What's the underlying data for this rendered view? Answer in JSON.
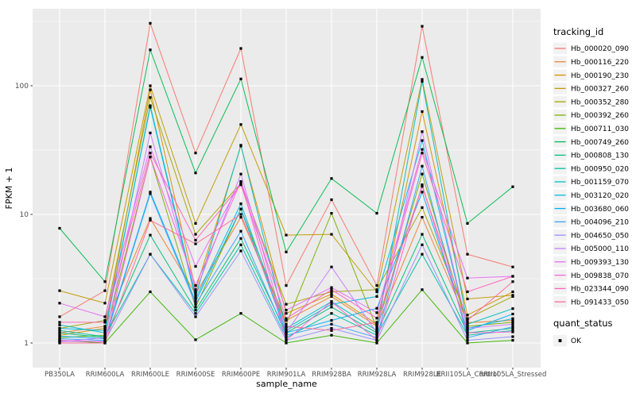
{
  "chart_data": {
    "type": "line",
    "title": "",
    "xlabel": "sample_name",
    "ylabel": "FPKM + 1",
    "y_scale": "log10",
    "y_ticks": [
      "1",
      "10",
      "100"
    ],
    "y_tick_values": [
      1,
      10,
      100
    ],
    "y_minor_values": [
      3.1623,
      31.623,
      316.23
    ],
    "x_categories": [
      "PB350LA",
      "RRIM600LA",
      "RRIM600LE",
      "RRIM600SE",
      "RRIM600PE",
      "RRIM901LA",
      "RRIM928BA",
      "RRIM928LA",
      "RRIM928LE",
      "RRII105LA_Control",
      "RRII105LA_Stressed"
    ],
    "series": [
      {
        "name": "Hb_000020_090",
        "color": "#F8766D",
        "values": [
          1.6,
          2.55,
          306,
          30,
          195,
          2.8,
          13,
          2.8,
          290,
          4.9,
          3.9
        ]
      },
      {
        "name": "Hb_000116_220",
        "color": "#EA8331",
        "values": [
          1.2,
          1.35,
          9.3,
          2.4,
          9.5,
          1.5,
          2.3,
          1.35,
          9.5,
          1.44,
          1.5
        ]
      },
      {
        "name": "Hb_000190_230",
        "color": "#D89000",
        "values": [
          1.15,
          1.3,
          93,
          2.6,
          34,
          1.7,
          2.4,
          1.4,
          63,
          1.65,
          2.5
        ]
      },
      {
        "name": "Hb_000327_260",
        "color": "#C09B00",
        "values": [
          2.55,
          2.04,
          100,
          8.5,
          50,
          6.9,
          7.0,
          2.5,
          112,
          2.2,
          2.35
        ]
      },
      {
        "name": "Hb_000352_280",
        "color": "#A3A500",
        "values": [
          1.3,
          1.5,
          81,
          7.0,
          17.5,
          2.0,
          2.5,
          2.6,
          11.3,
          1.55,
          2.3
        ]
      },
      {
        "name": "Hb_000392_260",
        "color": "#7CAE00",
        "values": [
          1.1,
          1.15,
          28,
          1.9,
          11,
          1.4,
          10.2,
          1.3,
          20.6,
          1.35,
          1.45
        ]
      },
      {
        "name": "Hb_000711_030",
        "color": "#39B600",
        "values": [
          1.05,
          1.0,
          2.5,
          1.06,
          1.7,
          1.0,
          1.15,
          1.0,
          2.6,
          1.0,
          1.05
        ]
      },
      {
        "name": "Hb_000749_260",
        "color": "#00BB4E",
        "values": [
          7.8,
          3.0,
          190,
          21,
          113,
          5.1,
          19,
          10.2,
          166,
          8.5,
          16.4
        ]
      },
      {
        "name": "Hb_000808_130",
        "color": "#00BF7D",
        "values": [
          1.2,
          1.1,
          6.9,
          1.8,
          6.5,
          1.2,
          1.9,
          1.2,
          7.0,
          1.2,
          1.3
        ]
      },
      {
        "name": "Hb_000950_020",
        "color": "#00C1A3",
        "values": [
          1.25,
          1.12,
          4.9,
          1.7,
          5.8,
          1.1,
          1.7,
          1.15,
          4.9,
          1.15,
          1.25
        ]
      },
      {
        "name": "Hb_001159_070",
        "color": "#00BFC4",
        "values": [
          1.38,
          1.2,
          70,
          2.3,
          34.5,
          1.3,
          2.1,
          1.25,
          108,
          1.4,
          1.85
        ]
      },
      {
        "name": "Hb_003120_020",
        "color": "#00BAE0",
        "values": [
          1.3,
          1.25,
          68,
          2.2,
          12.1,
          1.25,
          2.0,
          2.3,
          37.5,
          1.3,
          1.55
        ]
      },
      {
        "name": "Hb_003680_060",
        "color": "#00B0F6",
        "values": [
          1.13,
          1.08,
          14.9,
          2.1,
          11,
          1.2,
          1.5,
          1.86,
          14.9,
          1.25,
          1.68
        ]
      },
      {
        "name": "Hb_004096_210",
        "color": "#35A2FF",
        "values": [
          1.08,
          1.05,
          14.5,
          2.0,
          7.4,
          1.15,
          1.4,
          1.1,
          23.7,
          1.1,
          1.34
        ]
      },
      {
        "name": "Hb_004650_050",
        "color": "#9590FF",
        "values": [
          1.03,
          1.03,
          4.9,
          1.6,
          5.2,
          1.05,
          1.3,
          1.05,
          5.8,
          1.05,
          1.12
        ]
      },
      {
        "name": "Hb_005000_110",
        "color": "#C77CFF",
        "values": [
          1.02,
          1.1,
          43,
          2.5,
          20.6,
          1.2,
          3.9,
          1.2,
          44,
          1.3,
          1.4
        ]
      },
      {
        "name": "Hb_009393_130",
        "color": "#E76BF3",
        "values": [
          2.04,
          1.6,
          33.5,
          3.94,
          18,
          1.8,
          2.7,
          1.72,
          32,
          3.2,
          3.3
        ]
      },
      {
        "name": "Hb_009838_070",
        "color": "#FA62DB",
        "values": [
          1.05,
          1.02,
          28,
          2.8,
          18,
          1.05,
          2.1,
          1.05,
          17,
          1.2,
          1.22
        ]
      },
      {
        "name": "Hb_023344_090",
        "color": "#FF62BC",
        "values": [
          1.45,
          1.45,
          30,
          6.3,
          17,
          1.55,
          2.6,
          1.56,
          30,
          2.5,
          3.3
        ]
      },
      {
        "name": "Hb_091433_050",
        "color": "#FF6A98",
        "values": [
          1.0,
          1.0,
          9.0,
          5.9,
          10,
          1.35,
          1.25,
          1.45,
          16.5,
          1.5,
          3.0
        ]
      }
    ],
    "legend": {
      "color_title": "tracking_id",
      "shape_title": "quant_status",
      "shape_items": [
        {
          "label": "OK",
          "shape": "black-square"
        }
      ],
      "position": "right"
    },
    "style": {
      "panel_bg": "#EBEBEB",
      "grid": "#FFFFFF",
      "tick_text": "#4D4D4D",
      "axis_title": "#000000",
      "point_color": "#000000",
      "key_bg": "#F2F2F2",
      "grid_on": true
    }
  }
}
